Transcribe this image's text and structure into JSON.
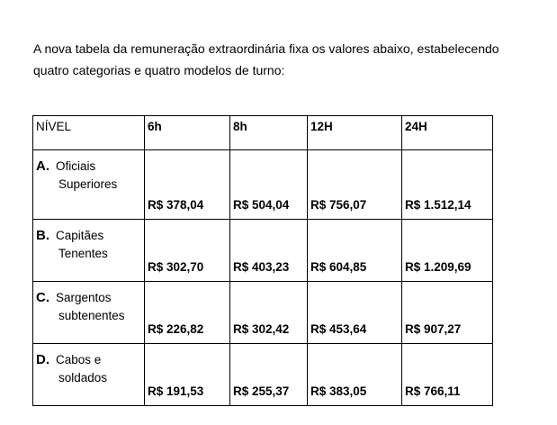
{
  "intro": {
    "lines": [
      "A nova tabela da remuneração extraordinária fixa os valores abaixo, estabelecendo",
      "quatro categorias e quatro modelos de turno:"
    ]
  },
  "table": {
    "header": [
      "NÍVEL",
      "6h",
      "8h",
      "12H",
      "24H"
    ],
    "rows": [
      {
        "letter": "A.",
        "label": [
          "Oficiais",
          "Superiores"
        ],
        "cells": [
          "R$ 378,04",
          "R$ 504,04",
          "R$ 756,07",
          "R$ 1.512,14"
        ]
      },
      {
        "letter": "B.",
        "label": [
          "Capitães",
          "Tenentes"
        ],
        "cells": [
          "R$ 302,70",
          "R$ 403,23",
          "R$ 604,85",
          "R$ 1.209,69"
        ]
      },
      {
        "letter": "C.",
        "label": [
          "Sargentos",
          "subtenentes"
        ],
        "cells": [
          "R$ 226,82",
          "R$ 302,42",
          "R$ 453,64",
          "R$ 907,27"
        ]
      },
      {
        "letter": "D.",
        "label": [
          "Cabos e",
          "soldados"
        ],
        "cells": [
          "R$ 191,53",
          "R$ 255,37",
          "R$ 383,05",
          "R$ 766,11"
        ]
      }
    ]
  }
}
